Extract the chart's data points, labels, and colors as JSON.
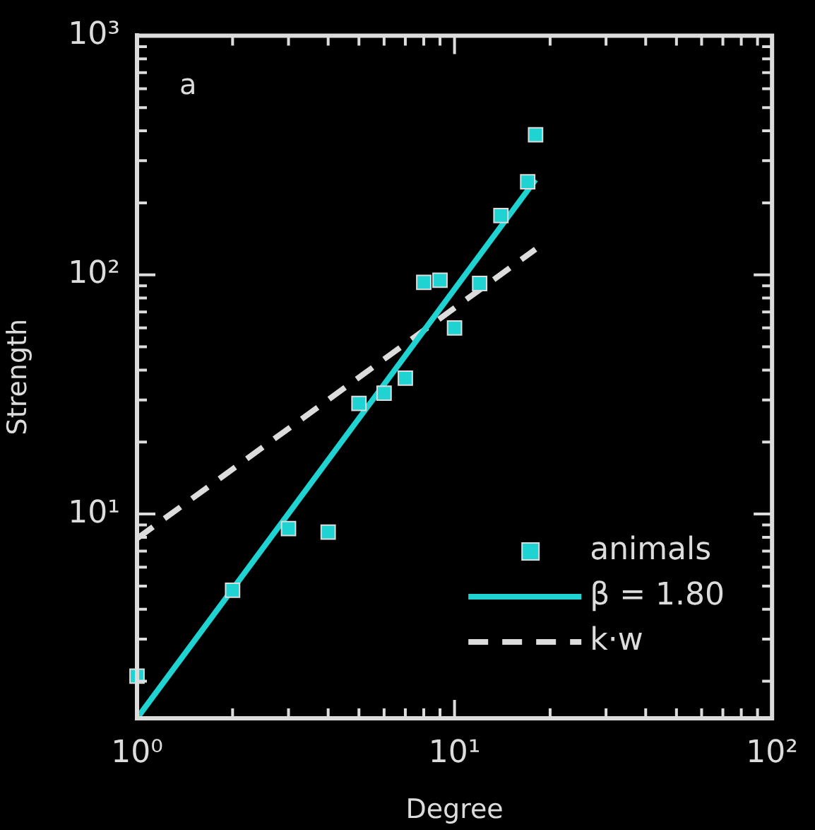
{
  "chart_data": {
    "type": "scatter",
    "xlabel": "Degree",
    "ylabel": "Strength",
    "log": "xy",
    "grid": false,
    "legend": "bottom right",
    "annotations": [
      "a"
    ],
    "xlim": [
      1,
      100
    ],
    "ylim": [
      1.4,
      1000
    ],
    "xticks": [
      {
        "value": 1,
        "label": "10⁰"
      },
      {
        "value": 2,
        "label": null
      },
      {
        "value": 3,
        "label": null
      },
      {
        "value": 4,
        "label": null
      },
      {
        "value": 5,
        "label": null
      },
      {
        "value": 6,
        "label": null
      },
      {
        "value": 7,
        "label": null
      },
      {
        "value": 8,
        "label": null
      },
      {
        "value": 9,
        "label": null
      },
      {
        "value": 10,
        "label": "10¹"
      },
      {
        "value": 20,
        "label": null
      },
      {
        "value": 30,
        "label": null
      },
      {
        "value": 40,
        "label": null
      },
      {
        "value": 50,
        "label": null
      },
      {
        "value": 60,
        "label": null
      },
      {
        "value": 70,
        "label": null
      },
      {
        "value": 80,
        "label": null
      },
      {
        "value": 90,
        "label": null
      },
      {
        "value": 100,
        "label": "10²"
      }
    ],
    "yticks": [
      {
        "value": 2,
        "label": null
      },
      {
        "value": 3,
        "label": null
      },
      {
        "value": 4,
        "label": null
      },
      {
        "value": 5,
        "label": null
      },
      {
        "value": 6,
        "label": null
      },
      {
        "value": 7,
        "label": null
      },
      {
        "value": 8,
        "label": null
      },
      {
        "value": 9,
        "label": null
      },
      {
        "value": 10,
        "label": "10¹"
      },
      {
        "value": 20,
        "label": null
      },
      {
        "value": 30,
        "label": null
      },
      {
        "value": 40,
        "label": null
      },
      {
        "value": 50,
        "label": null
      },
      {
        "value": 60,
        "label": null
      },
      {
        "value": 70,
        "label": null
      },
      {
        "value": 80,
        "label": null
      },
      {
        "value": 90,
        "label": null
      },
      {
        "value": 100,
        "label": "10²"
      },
      {
        "value": 200,
        "label": null
      },
      {
        "value": 300,
        "label": null
      },
      {
        "value": 400,
        "label": null
      },
      {
        "value": 500,
        "label": null
      },
      {
        "value": 600,
        "label": null
      },
      {
        "value": 700,
        "label": null
      },
      {
        "value": 800,
        "label": null
      },
      {
        "value": 900,
        "label": null
      },
      {
        "value": 1000,
        "label": "10³"
      }
    ],
    "series": [
      {
        "name": "animals",
        "marker": "square",
        "color": "#1fd3d3",
        "x": [
          1,
          2,
          3,
          4,
          5,
          6,
          7,
          8,
          9,
          10,
          12,
          14,
          17,
          18
        ],
        "values": [
          2.1,
          4.8,
          8.7,
          8.4,
          29,
          32,
          37,
          93,
          95,
          60,
          92,
          177,
          245,
          385
        ]
      },
      {
        "name": "β = 1.80",
        "type": "line",
        "marker": "none",
        "line_style": "solid",
        "color": "#1fd3d3",
        "x": [
          1,
          18
        ],
        "values": [
          1.4,
          250
        ]
      },
      {
        "name": "k·w",
        "type": "line",
        "marker": "none",
        "line_style": "dashed",
        "color": "#dcdcdc",
        "x": [
          1,
          18
        ],
        "values": [
          7.9,
          128
        ]
      }
    ]
  }
}
